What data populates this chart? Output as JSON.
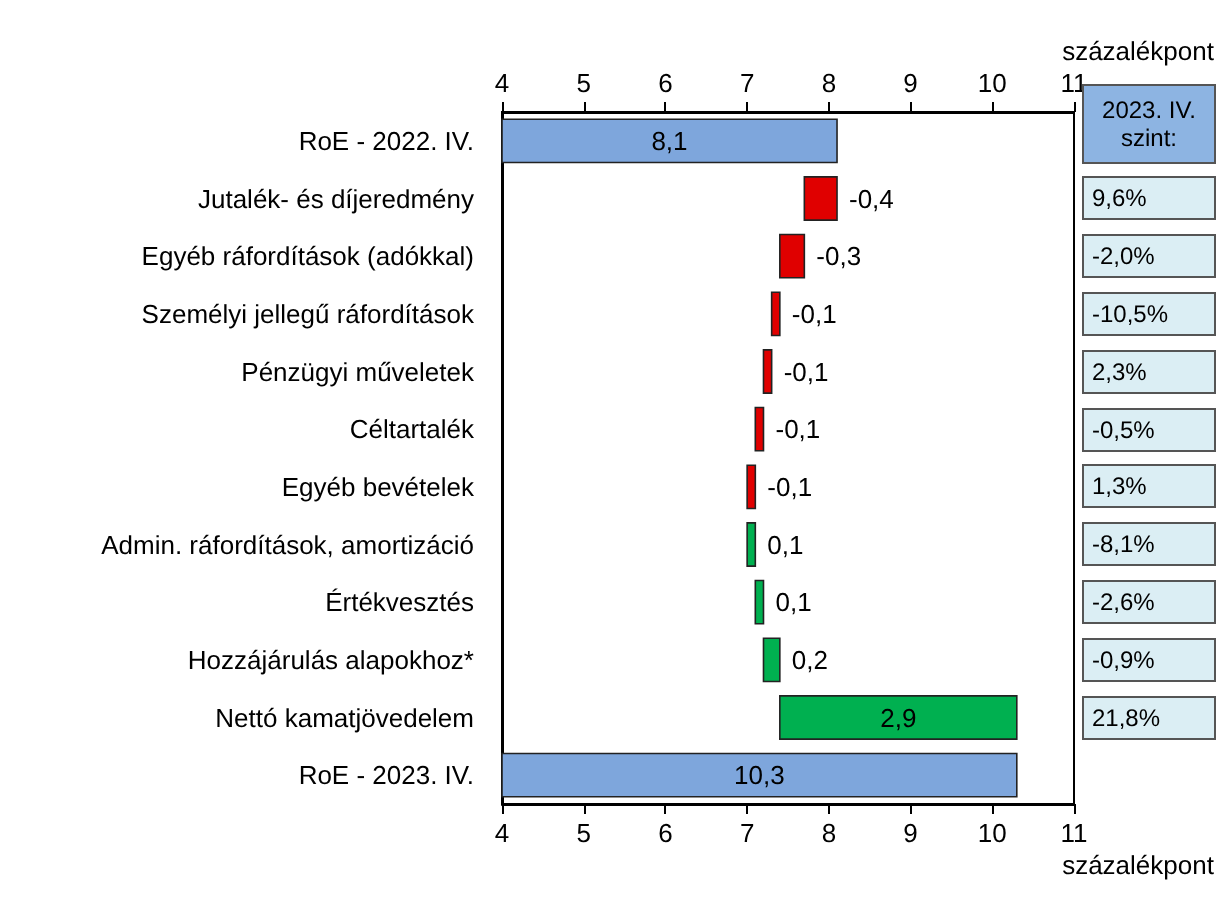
{
  "chart_data": {
    "type": "bar",
    "orientation": "horizontal",
    "categories": [
      "RoE - 2022. IV.",
      "Jutalék- és díjeredmény",
      "Egyéb ráfordítások (adókkal)",
      "Személyi jellegű ráfordítások",
      "Pénzügyi műveletek",
      "Céltartalék",
      "Egyéb bevételek",
      "Admin. ráfordítások, amortizáció",
      "Értékvesztés",
      "Hozzájárulás alapokhoz*",
      "Nettó kamatjövedelem",
      "RoE - 2023. IV."
    ],
    "values": [
      8.1,
      -0.4,
      -0.3,
      -0.1,
      -0.1,
      -0.1,
      -0.1,
      0.1,
      0.1,
      0.2,
      2.9,
      10.3
    ],
    "base": [
      0,
      8.1,
      7.7,
      7.4,
      7.3,
      7.2,
      7.1,
      7.0,
      7.1,
      7.2,
      7.4,
      0
    ],
    "value_labels": [
      "8,1",
      "-0,4",
      "-0,3",
      "-0,1",
      "-0,1",
      "-0,1",
      "-0,1",
      "0,1",
      "0,1",
      "0,2",
      "2,9",
      "10,3"
    ],
    "colors": [
      "#7ea6dc",
      "#e00000",
      "#e00000",
      "#e00000",
      "#e00000",
      "#e00000",
      "#e00000",
      "#00b050",
      "#00b050",
      "#00b050",
      "#00b050",
      "#7ea6dc"
    ],
    "xlim": [
      4,
      11
    ],
    "xticks": [
      4,
      5,
      6,
      7,
      8,
      9,
      10,
      11
    ],
    "xlabel": "százalékpont",
    "x2lim": [
      4,
      11
    ],
    "x2ticks": [
      4,
      5,
      6,
      7,
      8,
      9,
      10,
      11
    ],
    "x2label": "százalékpont",
    "annotations": [
      "2023. IV. szint:",
      "9,6%",
      "-2,0%",
      "-10,5%",
      "2,3%",
      "-0,5%",
      "1,3%",
      "-8,1%",
      "-2,6%",
      "-0,9%",
      "21,8%"
    ],
    "grid": false
  }
}
